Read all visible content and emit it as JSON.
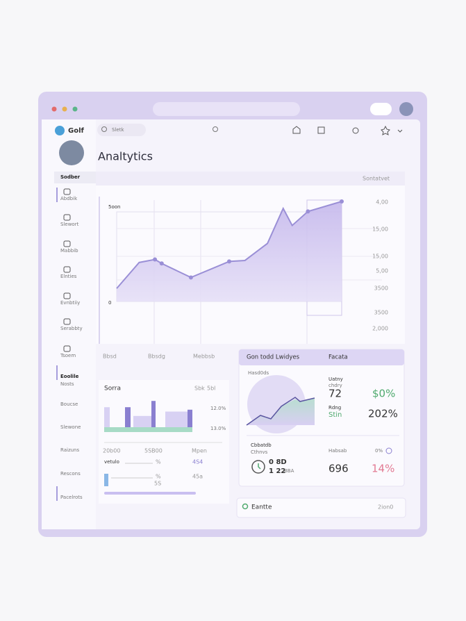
{
  "window": {
    "logo": "Golf",
    "search": "Sletk",
    "title": "Analtytics"
  },
  "sidebar": [
    "Sodber",
    "Abdbik",
    "Slewort",
    "Mabbib",
    "Elnties",
    "Evnbtiiy",
    "Serabbty",
    "Tsoem",
    "Eoolile",
    "Nosts",
    "Boucse",
    "Slewone",
    "Raizuns",
    "Rescons",
    "Pacelrots"
  ],
  "main_chart": {
    "dropdown": "Sontatvet",
    "left_labels": [
      "5oon",
      "0"
    ],
    "right_labels": [
      "4,00",
      "15,00",
      "15,00",
      "5,00",
      "3500",
      "3500",
      "2,000"
    ],
    "x_labels": [
      "Bbsd",
      "Bbsdg",
      "Mebbsb"
    ],
    "x": [
      0,
      10,
      17,
      20,
      33,
      50,
      57,
      67,
      74,
      78,
      85,
      100
    ],
    "values": [
      13,
      39,
      42,
      38,
      24,
      40,
      41,
      58,
      93,
      76,
      90,
      100
    ],
    "xlim": [
      0,
      100
    ],
    "ylim": [
      0,
      100
    ]
  },
  "sales_panel": {
    "title": "Sorra",
    "filter": "Sbk",
    "dropdown": "5bl",
    "bars": [
      32,
      32,
      18,
      42,
      25,
      28
    ],
    "ylim": [
      0,
      50
    ],
    "right_labels": [
      "12.0%",
      "13.0%"
    ],
    "x_labels": [
      "20b00",
      "5SB00",
      "Mpen"
    ],
    "row1": [
      "vetulo",
      "%",
      "4S4"
    ],
    "row2": [
      "%",
      "5S",
      "45a"
    ]
  },
  "stats_panel": {
    "header": "Gon todd Lwidyes",
    "header_right": "Facata",
    "subtitle": "Hasd0ds",
    "metric1": {
      "label": "Uatny",
      "sub": "chdry",
      "value": "72",
      "change": "$0%"
    },
    "metric2": {
      "label": "Rdng",
      "sub": "Stin",
      "value": "202%"
    },
    "clock": {
      "label": "Cbbatdb",
      "sub": "Cthnvs",
      "line1": "0 8D",
      "line2": "1 22",
      "unit": "BBA"
    },
    "metric3": {
      "label": "Habsab",
      "value": "696",
      "tag": "0%",
      "change": "14%"
    }
  },
  "footer_panel": {
    "label": "Eantte",
    "dropdown": "2ion0"
  }
}
